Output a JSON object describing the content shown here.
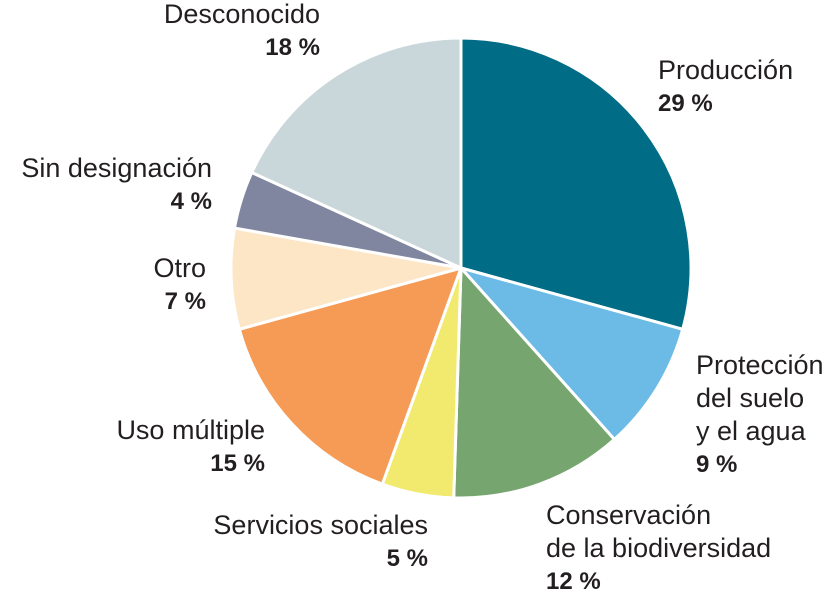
{
  "chart_data": {
    "type": "pie",
    "unit": "%",
    "start": "top",
    "direction": "clockwise",
    "slices": [
      {
        "label": "Producción",
        "value": 29,
        "pct_label": "29 %",
        "color": "#006c85"
      },
      {
        "label": "Protección del suelo y el agua",
        "lines": [
          "Protección",
          "del suelo",
          "y el agua"
        ],
        "value": 9,
        "pct_label": "9 %",
        "color": "#6cbbe7"
      },
      {
        "label": "Conservación de la biodiversidad",
        "lines": [
          "Conservación",
          "de la biodiversidad"
        ],
        "value": 12,
        "pct_label": "12 %",
        "color": "#77a570"
      },
      {
        "label": "Servicios sociales",
        "value": 5,
        "pct_label": "5 %",
        "color": "#f1ea6f"
      },
      {
        "label": "Uso múltiple",
        "value": 15,
        "pct_label": "15 %",
        "color": "#f59b56"
      },
      {
        "label": "Otro",
        "value": 7,
        "pct_label": "7 %",
        "color": "#fde6c6"
      },
      {
        "label": "Sin designación",
        "value": 4,
        "pct_label": "4 %",
        "color": "#80869f"
      },
      {
        "label": "Desconocido",
        "value": 18,
        "pct_label": "18 %",
        "color": "#c9d6da"
      }
    ]
  }
}
